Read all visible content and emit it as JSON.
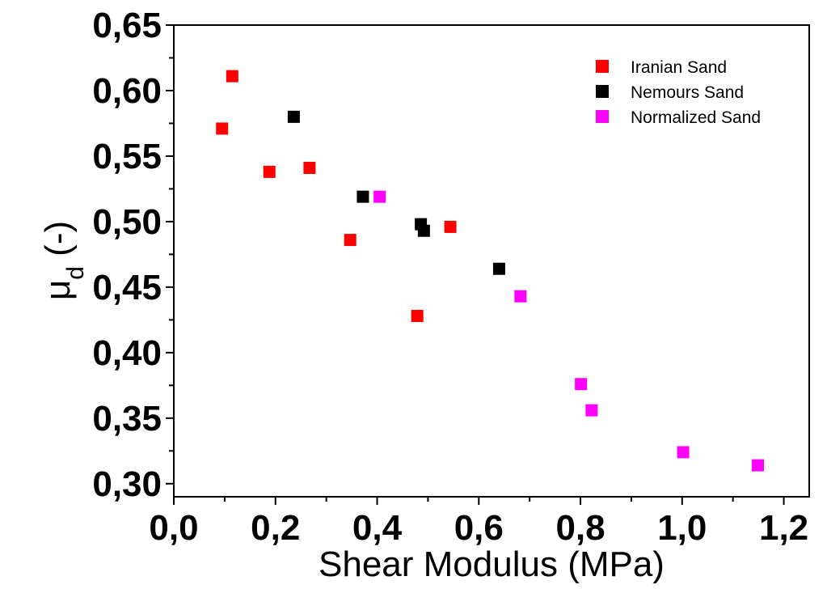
{
  "chart_data": {
    "type": "scatter",
    "title": "",
    "xlabel": "Shear Modulus (MPa)",
    "ylabel_main": "μ",
    "ylabel_sub": "d",
    "ylabel_tail": " (-)",
    "xlim": [
      0.0,
      1.25
    ],
    "ylim": [
      0.29,
      0.65
    ],
    "xticks": [
      0.0,
      0.2,
      0.4,
      0.6,
      0.8,
      1.0,
      1.2
    ],
    "xtick_labels": [
      "0,0",
      "0,2",
      "0,4",
      "0,6",
      "0,8",
      "1,0",
      "1,2"
    ],
    "yticks": [
      0.3,
      0.35,
      0.4,
      0.45,
      0.5,
      0.55,
      0.6,
      0.65
    ],
    "ytick_labels": [
      "0,30",
      "0,35",
      "0,40",
      "0,45",
      "0,50",
      "0,55",
      "0,60",
      "0,65"
    ],
    "grid": false,
    "legend_position": "top-right",
    "series": [
      {
        "name": "Iranian Sand",
        "color": "#ff0000",
        "points": [
          [
            0.095,
            0.571
          ],
          [
            0.115,
            0.611
          ],
          [
            0.188,
            0.538
          ],
          [
            0.267,
            0.541
          ],
          [
            0.347,
            0.486
          ],
          [
            0.479,
            0.428
          ],
          [
            0.544,
            0.496
          ]
        ]
      },
      {
        "name": "Nemours Sand",
        "color": "#000000",
        "points": [
          [
            0.236,
            0.58
          ],
          [
            0.372,
            0.519
          ],
          [
            0.486,
            0.498
          ],
          [
            0.492,
            0.493
          ],
          [
            0.64,
            0.464
          ]
        ]
      },
      {
        "name": "Normalized Sand",
        "color": "#ff00ff",
        "points": [
          [
            0.405,
            0.519
          ],
          [
            0.682,
            0.443
          ],
          [
            0.801,
            0.376
          ],
          [
            0.822,
            0.356
          ],
          [
            1.002,
            0.324
          ],
          [
            1.149,
            0.314
          ]
        ]
      }
    ]
  }
}
